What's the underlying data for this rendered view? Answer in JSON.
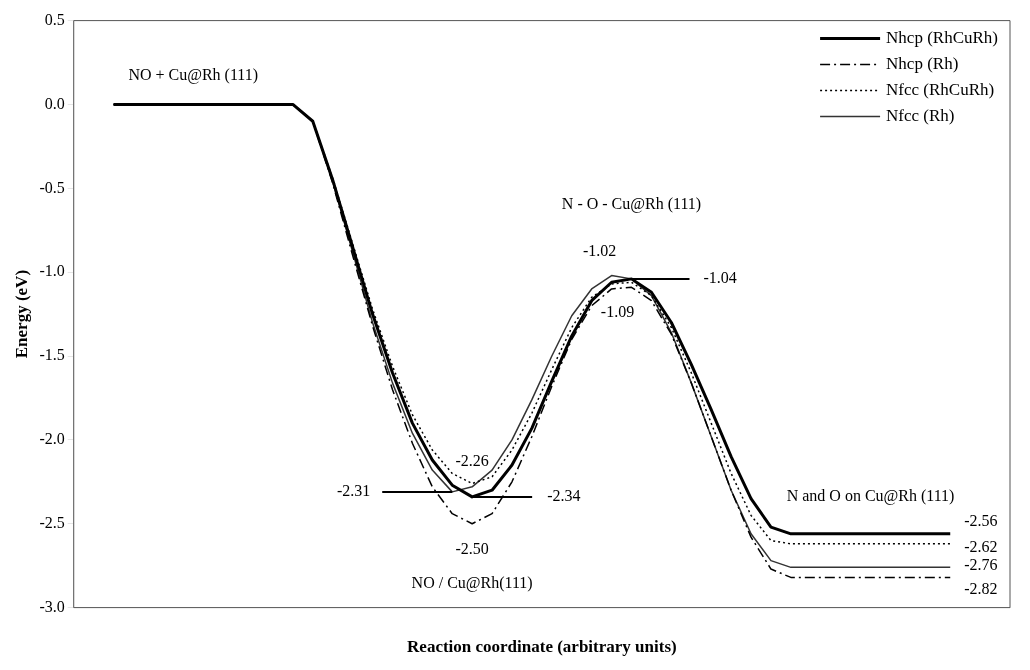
{
  "chart_data": {
    "type": "line",
    "xlabel": "Reaction coordinate (arbitrary units)",
    "ylabel": "Energy (eV)",
    "categories": [
      null,
      null,
      null,
      null,
      null,
      null,
      null,
      null,
      null,
      null,
      null,
      null,
      null,
      null,
      null,
      null,
      null,
      null,
      null,
      null,
      null,
      null,
      null,
      null,
      null,
      null,
      null,
      null,
      null,
      null,
      null,
      null,
      null,
      null,
      null,
      null,
      null,
      null,
      null,
      null,
      null,
      null,
      null,
      null,
      null,
      null,
      null,
      null
    ],
    "ylim": [
      -3,
      0.5
    ],
    "yticks": [
      {
        "value": -3,
        "label": "-3.0"
      },
      {
        "value": -2.5,
        "label": "-2.5"
      },
      {
        "value": -2,
        "label": "-2.0"
      },
      {
        "value": -1.5,
        "label": "-1.5"
      },
      {
        "value": -1,
        "label": "-1.0"
      },
      {
        "value": -0.5,
        "label": "-0.5"
      },
      {
        "value": 0,
        "label": "0.0"
      },
      {
        "value": 0.5,
        "label": "0.5"
      }
    ],
    "tick_labels": "y",
    "legend": "top right",
    "marker": "none",
    "series": [
      {
        "name": "Nhcp (RhCuRh)",
        "color": "#000000",
        "line_style": "solid",
        "values": [
          null,
          null,
          0,
          0,
          0,
          0,
          0,
          0,
          0,
          0,
          0,
          0,
          -0.1,
          -0.45,
          -0.85,
          -1.25,
          -1.6,
          -1.9,
          -2.12,
          -2.27,
          -2.34,
          -2.3,
          -2.15,
          -1.93,
          -1.65,
          -1.38,
          -1.17,
          -1.06,
          -1.04,
          -1.12,
          -1.3,
          -1.55,
          -1.82,
          -2.1,
          -2.35,
          -2.52,
          -2.56,
          -2.56,
          -2.56,
          -2.56,
          -2.56,
          -2.56,
          -2.56,
          -2.56,
          -2.56,
          null,
          null,
          null
        ],
        "value_labels": [
          null,
          null,
          null,
          null,
          null,
          null,
          null,
          null,
          null,
          null,
          null,
          null,
          null,
          null,
          null,
          null,
          null,
          null,
          null,
          null,
          "-2.34",
          null,
          null,
          null,
          null,
          null,
          null,
          null,
          "-1.04",
          null,
          null,
          null,
          null,
          null,
          null,
          null,
          null,
          null,
          null,
          null,
          null,
          null,
          null,
          null,
          "-2.56",
          null,
          null,
          null
        ]
      },
      {
        "name": "Nhcp (Rh)",
        "color": "#000000",
        "line_style": "dashdot",
        "values": [
          null,
          null,
          0,
          0,
          0,
          0,
          0,
          0,
          0,
          0,
          0,
          0,
          -0.1,
          -0.47,
          -0.9,
          -1.32,
          -1.7,
          -2.02,
          -2.28,
          -2.44,
          -2.5,
          -2.44,
          -2.25,
          -1.98,
          -1.68,
          -1.4,
          -1.2,
          -1.1,
          -1.09,
          -1.17,
          -1.37,
          -1.66,
          -1.98,
          -2.3,
          -2.58,
          -2.77,
          -2.82,
          -2.82,
          -2.82,
          -2.82,
          -2.82,
          -2.82,
          -2.82,
          -2.82,
          -2.82,
          null,
          null,
          null
        ],
        "value_labels": [
          null,
          null,
          null,
          null,
          null,
          null,
          null,
          null,
          null,
          null,
          null,
          null,
          null,
          null,
          null,
          null,
          null,
          null,
          null,
          null,
          "-2.50",
          null,
          null,
          null,
          null,
          null,
          null,
          null,
          "-1.09",
          null,
          null,
          null,
          null,
          null,
          null,
          null,
          null,
          null,
          null,
          null,
          null,
          null,
          null,
          null,
          "-2.82",
          null,
          null,
          null
        ]
      },
      {
        "name": "Nfcc (RhCuRh)",
        "color": "#000000",
        "line_style": "dotted",
        "values": [
          null,
          null,
          0,
          0,
          0,
          0,
          0,
          0,
          0,
          0,
          0,
          0,
          -0.1,
          -0.44,
          -0.83,
          -1.22,
          -1.56,
          -1.85,
          -2.06,
          -2.2,
          -2.26,
          -2.22,
          -2.06,
          -1.84,
          -1.58,
          -1.33,
          -1.15,
          -1.07,
          -1.06,
          -1.14,
          -1.33,
          -1.6,
          -1.9,
          -2.2,
          -2.45,
          -2.6,
          -2.62,
          -2.62,
          -2.62,
          -2.62,
          -2.62,
          -2.62,
          -2.62,
          -2.62,
          -2.62,
          null,
          null,
          null
        ],
        "value_labels": [
          null,
          null,
          null,
          null,
          null,
          null,
          null,
          null,
          null,
          null,
          null,
          null,
          null,
          null,
          null,
          null,
          null,
          null,
          null,
          null,
          "-2.26",
          null,
          null,
          null,
          null,
          null,
          null,
          null,
          null,
          null,
          null,
          null,
          null,
          null,
          null,
          null,
          null,
          null,
          null,
          null,
          null,
          null,
          null,
          null,
          "-2.62",
          null,
          null,
          null
        ]
      },
      {
        "name": "Nfcc (Rh)",
        "color": "#333333",
        "line_style": "solid",
        "values": [
          null,
          null,
          0,
          0,
          0,
          0,
          0,
          0,
          0,
          0,
          0,
          0,
          -0.1,
          -0.46,
          -0.88,
          -1.3,
          -1.66,
          -1.96,
          -2.18,
          -2.31,
          -2.28,
          -2.18,
          -2.0,
          -1.76,
          -1.5,
          -1.26,
          -1.1,
          -1.02,
          -1.04,
          -1.14,
          -1.36,
          -1.66,
          -1.98,
          -2.3,
          -2.56,
          -2.72,
          -2.76,
          -2.76,
          -2.76,
          -2.76,
          -2.76,
          -2.76,
          -2.76,
          -2.76,
          -2.76,
          null,
          null,
          null
        ],
        "value_labels": [
          null,
          null,
          null,
          null,
          null,
          null,
          null,
          null,
          null,
          null,
          null,
          null,
          null,
          null,
          null,
          null,
          null,
          null,
          null,
          "-2.31",
          null,
          null,
          null,
          null,
          null,
          null,
          null,
          "-1.02",
          null,
          null,
          null,
          null,
          null,
          null,
          null,
          null,
          null,
          null,
          null,
          null,
          null,
          null,
          null,
          null,
          "-2.76",
          null,
          null,
          null
        ]
      }
    ],
    "annotations": [
      "NO + Cu@Rh (111)",
      "N - O - Cu@Rh (111)",
      "NO / Cu@Rh(111)",
      "N and O on Cu@Rh (111)"
    ]
  }
}
